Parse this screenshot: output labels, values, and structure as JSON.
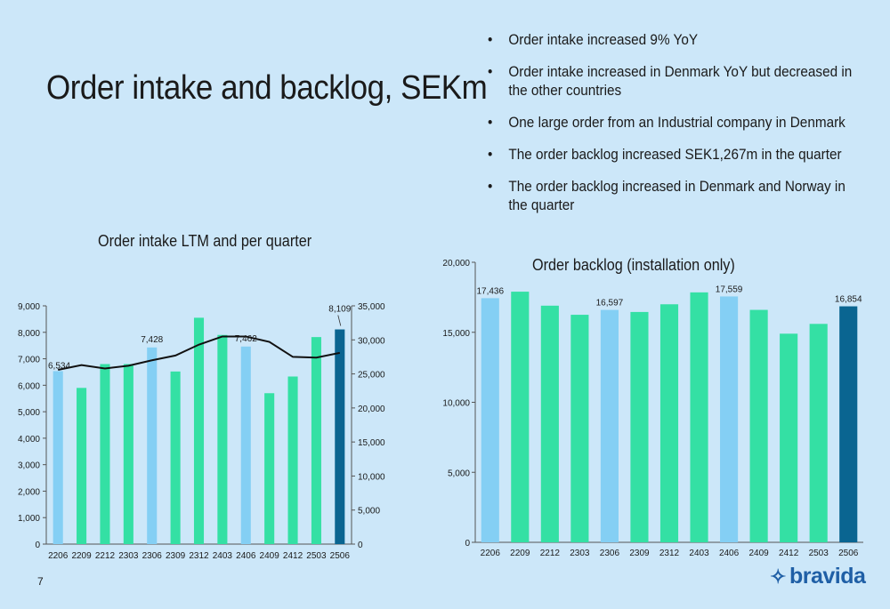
{
  "title": "Order intake and backlog, SEKm",
  "bullets": [
    "Order intake increased 9% YoY",
    "Order intake increased in Denmark YoY but decreased in the other countries",
    "One large order from an Industrial company in Denmark",
    "The order backlog increased SEK1,267m in the quarter",
    "The order backlog increased in Denmark and Norway in the quarter"
  ],
  "page_number": "7",
  "logo_text": "bravida",
  "colors": {
    "background": "#cce7f9",
    "light_blue": "#84cff4",
    "green": "#34e0a4",
    "dark_blue": "#0a6591",
    "line": "#111111"
  },
  "chart_data": [
    {
      "type": "bar",
      "title": "Order intake LTM and per quarter",
      "categories": [
        "2206",
        "2209",
        "2212",
        "2303",
        "2306",
        "2309",
        "2312",
        "2403",
        "2406",
        "2409",
        "2412",
        "2503",
        "2506"
      ],
      "series": [
        {
          "values": [
            6534,
            5900,
            6800,
            6800,
            7428,
            6520,
            8550,
            7900,
            7462,
            5700,
            6330,
            7820,
            8109
          ],
          "axis": "left",
          "bar_colors": [
            "light_blue",
            "green",
            "green",
            "green",
            "light_blue",
            "green",
            "green",
            "green",
            "light_blue",
            "green",
            "green",
            "green",
            "dark_blue"
          ]
        },
        {
          "type": "line",
          "values": [
            25600,
            26300,
            25800,
            26200,
            27000,
            27700,
            29300,
            30500,
            30500,
            29700,
            27500,
            27400,
            28100
          ],
          "axis": "right"
        }
      ],
      "data_labels": [
        {
          "index": 0,
          "text": "6,534"
        },
        {
          "index": 4,
          "text": "7,428"
        },
        {
          "index": 8,
          "text": "7,462"
        },
        {
          "index": 12,
          "text": "8,109"
        }
      ],
      "y_left": {
        "min": 0,
        "max": 9000,
        "ticks": [
          "0",
          "1,000",
          "2,000",
          "3,000",
          "4,000",
          "5,000",
          "6,000",
          "7,000",
          "8,000",
          "9,000"
        ]
      },
      "y_right": {
        "min": 0,
        "max": 35000,
        "ticks": [
          "0",
          "5,000",
          "10,000",
          "15,000",
          "20,000",
          "25,000",
          "30,000",
          "35,000"
        ]
      },
      "grid": false,
      "legend": "none"
    },
    {
      "type": "bar",
      "title": "Order backlog (installation only)",
      "categories": [
        "2206",
        "2209",
        "2212",
        "2303",
        "2306",
        "2309",
        "2312",
        "2403",
        "2406",
        "2409",
        "2412",
        "2503",
        "2506"
      ],
      "values": [
        17436,
        17900,
        16900,
        16250,
        16597,
        16450,
        17000,
        17850,
        17559,
        16600,
        14900,
        15600,
        16854
      ],
      "bar_colors": [
        "light_blue",
        "green",
        "green",
        "green",
        "light_blue",
        "green",
        "green",
        "green",
        "light_blue",
        "green",
        "green",
        "green",
        "dark_blue"
      ],
      "data_labels": [
        {
          "index": 0,
          "text": "17,436"
        },
        {
          "index": 4,
          "text": "16,597"
        },
        {
          "index": 8,
          "text": "17,559"
        },
        {
          "index": 12,
          "text": "16,854"
        }
      ],
      "y": {
        "min": 0,
        "max": 20000,
        "ticks": [
          "0",
          "5,000",
          "10,000",
          "15,000",
          "20,000"
        ]
      },
      "grid": false,
      "legend": "none"
    }
  ]
}
